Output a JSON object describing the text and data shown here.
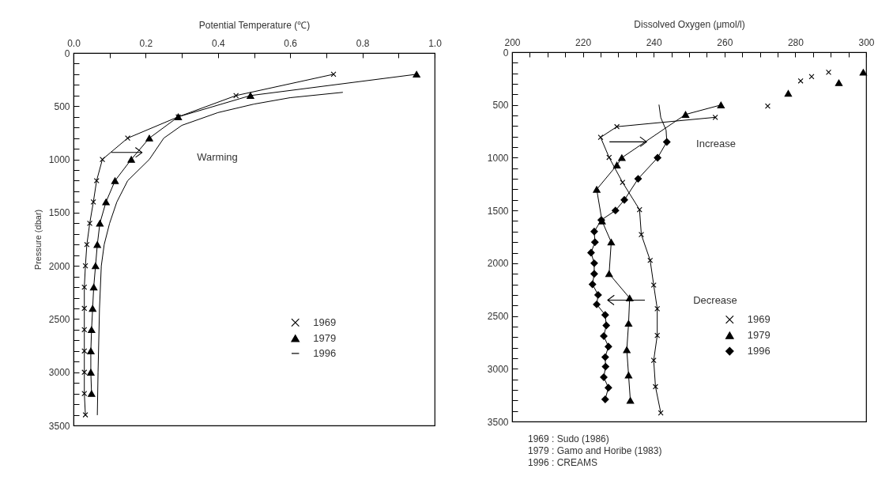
{
  "chart_data": [
    {
      "type": "line",
      "xlabel": "Potential Temperature (℃)",
      "ylabel": "Pressure (dbar)",
      "xlim": [
        0,
        1
      ],
      "ylim": [
        3500,
        0
      ],
      "xticks": [
        {
          "value": 0,
          "label": "0.0"
        },
        {
          "value": 0.1,
          "label": null
        },
        {
          "value": 0.2,
          "label": "0.2"
        },
        {
          "value": 0.3,
          "label": null
        },
        {
          "value": 0.4,
          "label": "0.4"
        },
        {
          "value": 0.5,
          "label": null
        },
        {
          "value": 0.6,
          "label": "0.6"
        },
        {
          "value": 0.7,
          "label": null
        },
        {
          "value": 0.8,
          "label": "0.8"
        },
        {
          "value": 0.9,
          "label": null
        },
        {
          "value": 1,
          "label": "1.0"
        }
      ],
      "yticks": [
        0,
        {
          "value": 100,
          "label": null
        },
        {
          "value": 200,
          "label": null
        },
        {
          "value": 300,
          "label": null
        },
        {
          "value": 400,
          "label": null
        },
        500,
        {
          "value": 600,
          "label": null
        },
        {
          "value": 700,
          "label": null
        },
        {
          "value": 800,
          "label": null
        },
        {
          "value": 900,
          "label": null
        },
        1000,
        {
          "value": 1100,
          "label": null
        },
        {
          "value": 1200,
          "label": null
        },
        {
          "value": 1300,
          "label": null
        },
        {
          "value": 1400,
          "label": null
        },
        1500,
        {
          "value": 1600,
          "label": null
        },
        {
          "value": 1700,
          "label": null
        },
        {
          "value": 1800,
          "label": null
        },
        {
          "value": 1900,
          "label": null
        },
        2000,
        {
          "value": 2100,
          "label": null
        },
        {
          "value": 2200,
          "label": null
        },
        {
          "value": 2300,
          "label": null
        },
        {
          "value": 2400,
          "label": null
        },
        2500,
        {
          "value": 2600,
          "label": null
        },
        {
          "value": 2700,
          "label": null
        },
        {
          "value": 2800,
          "label": null
        },
        {
          "value": 2900,
          "label": null
        },
        3000,
        {
          "value": 3100,
          "label": null
        },
        {
          "value": 3200,
          "label": null
        },
        {
          "value": 3300,
          "label": null
        },
        {
          "value": 3400,
          "label": null
        },
        3500
      ],
      "legend": "right",
      "annotations": [
        "Warming"
      ],
      "series": [
        {
          "name": "1969",
          "color": "#000000",
          "marker": "cross",
          "x": [
            0.72,
            0.45,
            0.29,
            0.15,
            0.08,
            0.064,
            0.055,
            0.045,
            0.037,
            0.033,
            0.03,
            0.03,
            0.03,
            0.03,
            0.03,
            0.03,
            0.033
          ],
          "values": [
            200,
            400,
            600,
            800,
            1000,
            1200,
            1400,
            1600,
            1800,
            2000,
            2200,
            2400,
            2600,
            2800,
            3000,
            3200,
            3400
          ]
        },
        {
          "name": "1979",
          "color": "#000000",
          "marker": "triangle",
          "x": [
            0.95,
            0.49,
            0.29,
            0.21,
            0.16,
            0.115,
            0.09,
            0.073,
            0.066,
            0.061,
            0.056,
            0.053,
            0.05,
            0.048,
            0.048,
            0.05
          ],
          "values": [
            200,
            400,
            600,
            800,
            1000,
            1200,
            1400,
            1600,
            1800,
            2000,
            2200,
            2400,
            2600,
            2800,
            3000,
            3200
          ]
        },
        {
          "name": "1996",
          "color": "#000000",
          "marker": "none",
          "x": [
            0.745,
            0.6,
            0.5,
            0.4,
            0.3,
            0.25,
            0.21,
            0.15,
            0.12,
            0.1,
            0.085,
            0.077,
            0.072,
            0.068,
            0.066
          ],
          "values": [
            370,
            420,
            480,
            560,
            680,
            800,
            1000,
            1200,
            1400,
            1600,
            1800,
            2000,
            2400,
            3000,
            3400
          ]
        }
      ]
    },
    {
      "type": "line",
      "xlabel": "Dissolved Oxygen (μmol/l)",
      "xlim": [
        200,
        300
      ],
      "ylim": [
        3500,
        0
      ],
      "xticks": [
        200,
        {
          "value": 205,
          "label": null
        },
        {
          "value": 210,
          "label": null
        },
        {
          "value": 215,
          "label": null
        },
        220,
        {
          "value": 225,
          "label": null
        },
        {
          "value": 230,
          "label": null
        },
        {
          "value": 235,
          "label": null
        },
        240,
        {
          "value": 245,
          "label": null
        },
        {
          "value": 250,
          "label": null
        },
        {
          "value": 255,
          "label": null
        },
        260,
        {
          "value": 265,
          "label": null
        },
        {
          "value": 270,
          "label": null
        },
        {
          "value": 275,
          "label": null
        },
        280,
        {
          "value": 285,
          "label": null
        },
        {
          "value": 290,
          "label": null
        },
        {
          "value": 295,
          "label": null
        },
        300
      ],
      "yticks": [
        0,
        {
          "value": 100,
          "label": null
        },
        {
          "value": 200,
          "label": null
        },
        {
          "value": 300,
          "label": null
        },
        {
          "value": 400,
          "label": null
        },
        500,
        {
          "value": 600,
          "label": null
        },
        {
          "value": 700,
          "label": null
        },
        {
          "value": 800,
          "label": null
        },
        {
          "value": 900,
          "label": null
        },
        1000,
        {
          "value": 1100,
          "label": null
        },
        {
          "value": 1200,
          "label": null
        },
        {
          "value": 1300,
          "label": null
        },
        {
          "value": 1400,
          "label": null
        },
        1500,
        {
          "value": 1600,
          "label": null
        },
        {
          "value": 1700,
          "label": null
        },
        {
          "value": 1800,
          "label": null
        },
        {
          "value": 1900,
          "label": null
        },
        2000,
        {
          "value": 2100,
          "label": null
        },
        {
          "value": 2200,
          "label": null
        },
        {
          "value": 2300,
          "label": null
        },
        {
          "value": 2400,
          "label": null
        },
        2500,
        {
          "value": 2600,
          "label": null
        },
        {
          "value": 2700,
          "label": null
        },
        {
          "value": 2800,
          "label": null
        },
        {
          "value": 2900,
          "label": null
        },
        3000,
        {
          "value": 3100,
          "label": null
        },
        {
          "value": 3200,
          "label": null
        },
        {
          "value": 3300,
          "label": null
        },
        {
          "value": 3400,
          "label": null
        },
        3500
      ],
      "legend": "right",
      "annotations": [
        "Increase",
        "Decrease",
        "1969 : Sudo (1986)",
        "1979 : Gamo and Horibe (1983)",
        "1996 : CREAMS"
      ],
      "series": [
        {
          "name": "1969",
          "color": "#000000",
          "marker": "cross",
          "x": [
            257.4,
            229.6,
            225,
            227.4,
            231.2,
            236,
            236.5,
            239,
            240,
            241,
            241,
            240,
            240.5,
            242
          ],
          "values": [
            617,
            706,
            807,
            997,
            1234,
            1492,
            1728,
            1973,
            2207,
            2431,
            2684,
            2920,
            3170,
            3418
          ]
        },
        {
          "type": "scatter",
          "color": "#000000",
          "marker": "cross",
          "x": [
            289.4,
            284.6,
            281.5,
            272.2
          ],
          "values": [
            190,
            231,
            272,
            511
          ]
        },
        {
          "name": "1979",
          "color": "#000000",
          "marker": "triangle",
          "x": [
            259,
            249,
            231,
            229.6,
            223.9,
            225.4,
            228,
            227.4,
            233.2,
            232.9,
            232.4,
            232.9,
            233.4
          ],
          "values": [
            500,
            590,
            1000,
            1070,
            1300,
            1600,
            1800,
            2100,
            2330,
            2570,
            2820,
            3060,
            3300
          ]
        },
        {
          "type": "scatter",
          "color": "#000000",
          "marker": "triangle",
          "x": [
            299.2,
            292.3,
            278
          ],
          "values": [
            190,
            290,
            390
          ]
        },
        {
          "name": "1996",
          "color": "#000000",
          "marker": "diamond",
          "x": [
            243.7,
            241.1,
            235.6,
            231.7,
            229.2,
            225.2,
            223.2,
            223.4,
            222.3,
            223.2,
            223.2,
            222.7,
            224.3,
            223.9,
            226.3,
            226.6,
            225.9,
            227.2,
            226.3,
            226.4,
            225.9,
            227.2,
            226.3
          ],
          "values": [
            850,
            1000,
            1200,
            1400,
            1500,
            1590,
            1700,
            1800,
            1900,
            2000,
            2100,
            2200,
            2300,
            2390,
            2490,
            2590,
            2690,
            2790,
            2890,
            2980,
            3080,
            3180,
            3290
          ]
        },
        {
          "color": "#000000",
          "marker": "none",
          "x": [
            241.5,
            242,
            243.5,
            243.7
          ],
          "values": [
            500,
            620,
            740,
            850
          ]
        }
      ]
    }
  ]
}
